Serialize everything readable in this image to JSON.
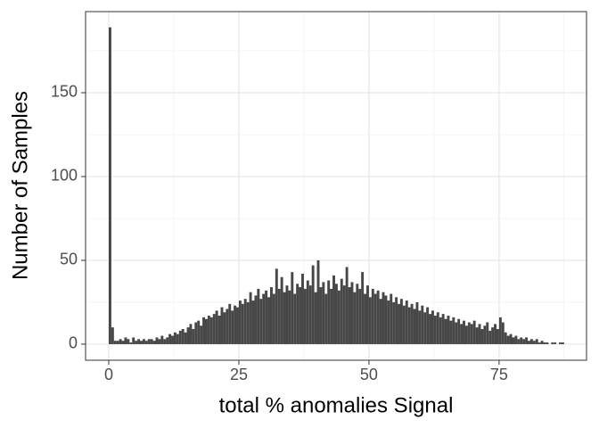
{
  "chart_data": {
    "type": "histogram",
    "xlabel": "total %  anomalies Signal",
    "ylabel": "Number of Samples",
    "color": "#474747",
    "bins": [
      0,
      0.5,
      1,
      1.5,
      2,
      2.5,
      3,
      3.5,
      4,
      4.5,
      5,
      5.5,
      6,
      6.5,
      7,
      7.5,
      8,
      8.5,
      9,
      9.5,
      10,
      10.5,
      11,
      11.5,
      12,
      12.5,
      13,
      13.5,
      14,
      14.5,
      15,
      15.5,
      16,
      16.5,
      17,
      17.5,
      18,
      18.5,
      19,
      19.5,
      20,
      20.5,
      21,
      21.5,
      22,
      22.5,
      23,
      23.5,
      24,
      24.5,
      25,
      25.5,
      26,
      26.5,
      27,
      27.5,
      28,
      28.5,
      29,
      29.5,
      30,
      30.5,
      31,
      31.5,
      32,
      32.5,
      33,
      33.5,
      34,
      34.5,
      35,
      35.5,
      36,
      36.5,
      37,
      37.5,
      38,
      38.5,
      39,
      39.5,
      40,
      40.5,
      41,
      41.5,
      42,
      42.5,
      43,
      43.5,
      44,
      44.5,
      45,
      45.5,
      46,
      46.5,
      47,
      47.5,
      48,
      48.5,
      49,
      49.5,
      50,
      50.5,
      51,
      51.5,
      52,
      52.5,
      53,
      53.5,
      54,
      54.5,
      55,
      55.5,
      56,
      56.5,
      57,
      57.5,
      58,
      58.5,
      59,
      59.5,
      60,
      60.5,
      61,
      61.5,
      62,
      62.5,
      63,
      63.5,
      64,
      64.5,
      65,
      65.5,
      66,
      66.5,
      67,
      67.5,
      68,
      68.5,
      69,
      69.5,
      70,
      70.5,
      71,
      71.5,
      72,
      72.5,
      73,
      73.5,
      74,
      74.5,
      75,
      75.5,
      76,
      76.5,
      77,
      77.5,
      78,
      78.5,
      79,
      79.5,
      80,
      80.5,
      81,
      81.5,
      82,
      82.5,
      83,
      83.5,
      84,
      84.5,
      85,
      85.5,
      86,
      86.5,
      87,
      87.5,
      88
    ],
    "values": [
      189,
      10,
      2,
      2,
      3,
      2,
      4,
      3,
      1,
      4,
      2,
      3,
      2,
      3,
      2,
      3,
      3,
      2,
      4,
      3,
      5,
      3,
      4,
      6,
      5,
      7,
      6,
      8,
      9,
      7,
      10,
      12,
      9,
      13,
      14,
      11,
      16,
      15,
      17,
      16,
      18,
      20,
      17,
      22,
      19,
      21,
      24,
      20,
      23,
      22,
      26,
      24,
      27,
      25,
      31,
      26,
      29,
      33,
      27,
      30,
      32,
      28,
      34,
      30,
      45,
      33,
      40,
      31,
      35,
      32,
      43,
      30,
      36,
      34,
      42,
      33,
      38,
      35,
      47,
      31,
      50,
      34,
      37,
      30,
      38,
      33,
      41,
      36,
      32,
      39,
      35,
      46,
      34,
      37,
      31,
      36,
      33,
      43,
      30,
      35,
      28,
      33,
      30,
      32,
      27,
      31,
      29,
      26,
      30,
      25,
      28,
      24,
      27,
      23,
      26,
      22,
      24,
      21,
      25,
      20,
      23,
      19,
      22,
      18,
      20,
      17,
      19,
      16,
      18,
      15,
      17,
      14,
      16,
      13,
      15,
      12,
      14,
      11,
      13,
      12,
      14,
      10,
      12,
      9,
      11,
      13,
      8,
      10,
      12,
      9,
      16,
      13,
      7,
      5,
      6,
      4,
      5,
      3,
      4,
      3,
      4,
      2,
      3,
      2,
      3,
      1,
      2,
      1,
      1,
      0,
      1,
      1,
      0,
      1,
      1,
      0
    ],
    "xlim": [
      -4.45,
      91.8
    ],
    "ylim": [
      -9.6,
      198.4
    ],
    "xticks": [
      0,
      25,
      50,
      75
    ],
    "yticks": [
      0,
      50,
      100,
      150
    ],
    "minor_xticks": [
      12.5,
      37.5,
      62.5,
      87.5
    ],
    "minor_yticks": [
      25,
      75,
      125,
      175
    ],
    "grid": true
  }
}
